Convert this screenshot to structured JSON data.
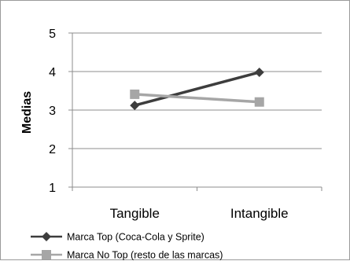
{
  "chart_data": {
    "type": "line",
    "title": "",
    "xlabel": "",
    "ylabel": "Medias",
    "categories": [
      "Tangible",
      "Intangible"
    ],
    "yticks": [
      "1",
      "2",
      "3",
      "4",
      "5"
    ],
    "ylim": [
      1,
      5
    ],
    "grid": true,
    "legend_position": "bottom",
    "series": [
      {
        "name": "Marca Top (Coca-Cola y Sprite)",
        "values": [
          3.12,
          3.98
        ],
        "color": "#3d3d3d",
        "marker": "diamond"
      },
      {
        "name": "Marca No Top (resto de las marcas)",
        "values": [
          3.41,
          3.21
        ],
        "color": "#a6a6a6",
        "marker": "square"
      }
    ]
  }
}
